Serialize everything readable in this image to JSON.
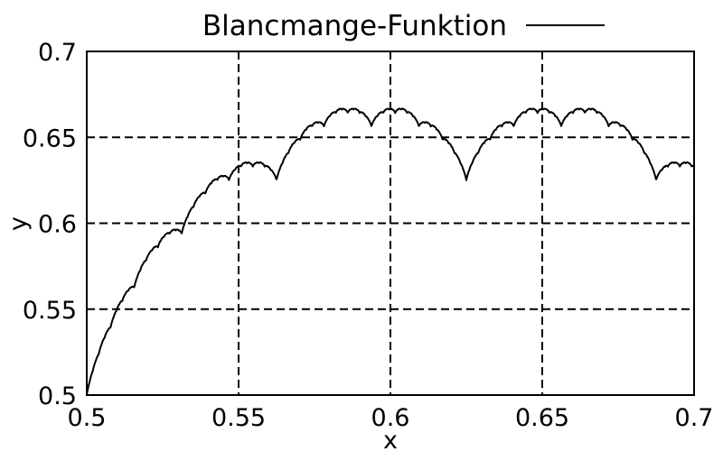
{
  "chart_data": {
    "type": "line",
    "title": "",
    "xlabel": "x",
    "ylabel": "y",
    "xlim": [
      0.5,
      0.7
    ],
    "ylim": [
      0.5,
      0.7
    ],
    "x_ticks": [
      0.5,
      0.55,
      0.6,
      0.65,
      0.7
    ],
    "y_ticks": [
      0.5,
      0.55,
      0.6,
      0.65,
      0.7
    ],
    "x_tick_labels": [
      "0.5",
      "0.55",
      "0.6",
      "0.65",
      "0.7"
    ],
    "y_tick_labels": [
      "0.5",
      "0.55",
      "0.6",
      "0.65",
      "0.7"
    ],
    "grid": true,
    "legend_position": "top",
    "series": [
      {
        "name": "Blancmange-Funktion",
        "color": "#000000",
        "function": "blancmange",
        "x_range": [
          0.5,
          0.7
        ]
      }
    ]
  }
}
